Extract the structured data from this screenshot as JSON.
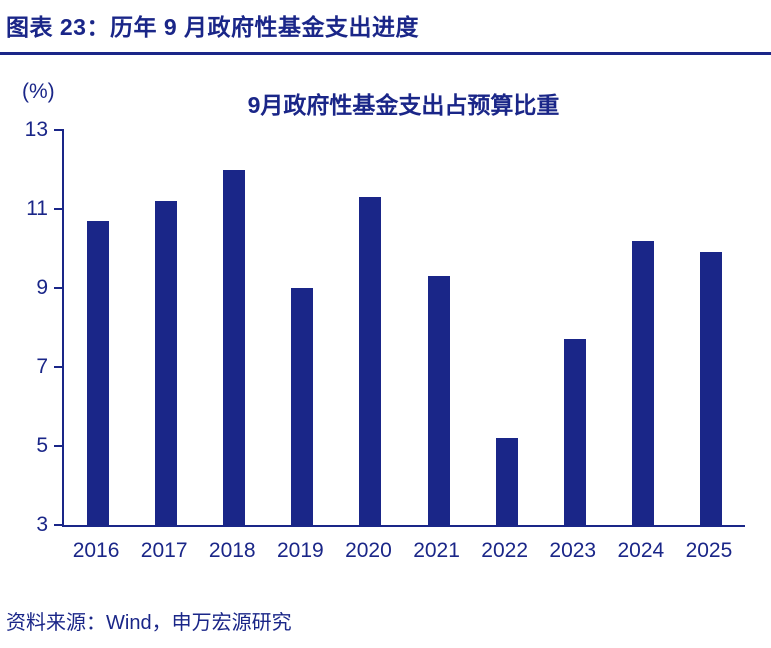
{
  "figure": {
    "title": "图表 23：历年 9 月政府性基金支出进度",
    "source": "资料来源：Wind，申万宏源研究"
  },
  "colors": {
    "navy": "#1a2688",
    "background": "#ffffff"
  },
  "chart_data": {
    "type": "bar",
    "title": "9月政府性基金支出占预算比重",
    "ylabel": "(%)",
    "xlabel": "",
    "categories": [
      "2016",
      "2017",
      "2018",
      "2019",
      "2020",
      "2021",
      "2022",
      "2023",
      "2024",
      "2025"
    ],
    "values": [
      10.7,
      11.2,
      12.0,
      9.0,
      11.3,
      9.3,
      5.2,
      7.7,
      10.2,
      9.9
    ],
    "ylim": [
      3,
      13
    ],
    "yticks": [
      3,
      5,
      7,
      9,
      11,
      13
    ],
    "grid": false,
    "legend": "none",
    "bar_color": "#1a2688"
  }
}
